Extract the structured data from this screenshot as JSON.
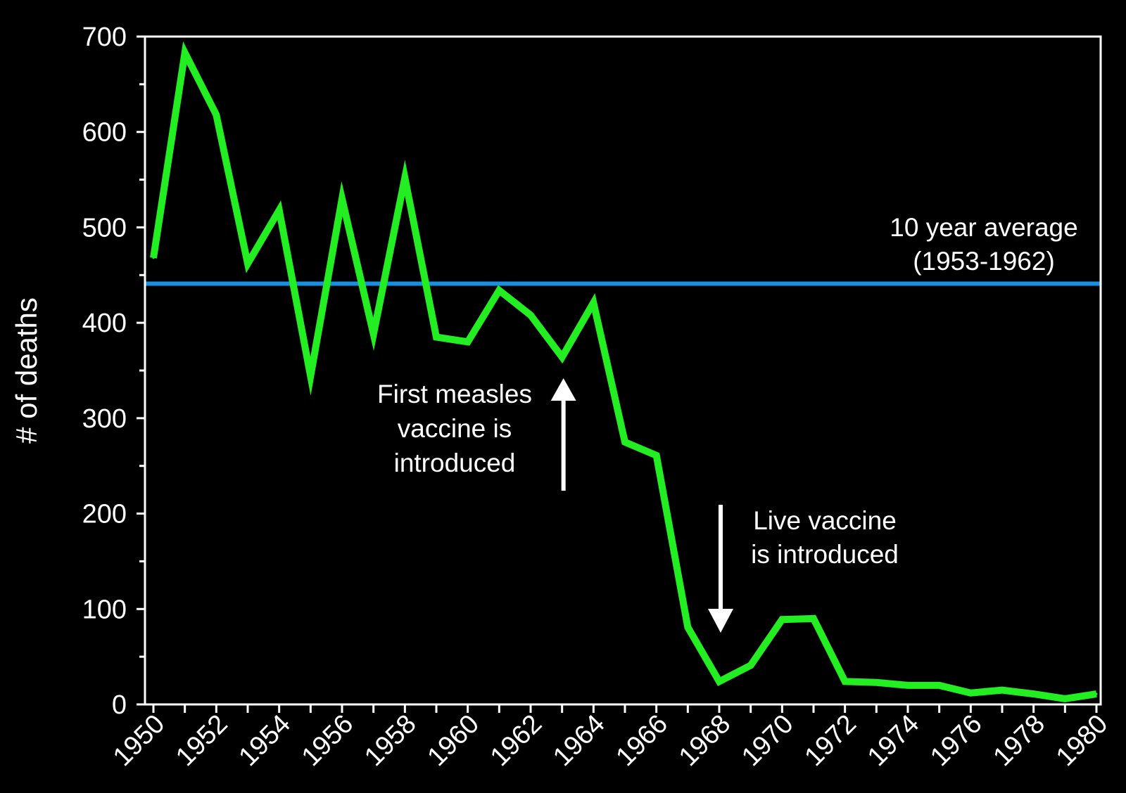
{
  "chart_data": {
    "type": "line",
    "title": "",
    "xlabel": "",
    "ylabel": "# of deaths",
    "xlim": [
      1950,
      1980
    ],
    "ylim": [
      0,
      700
    ],
    "y_ticks": [
      0,
      100,
      200,
      300,
      400,
      500,
      600,
      700
    ],
    "x_ticks": [
      1950,
      1952,
      1954,
      1956,
      1958,
      1960,
      1962,
      1964,
      1966,
      1968,
      1970,
      1972,
      1974,
      1976,
      1978,
      1980
    ],
    "grid": false,
    "legend": "none",
    "series": [
      {
        "color": "#22ee22",
        "x": [
          1950,
          1951,
          1952,
          1953,
          1954,
          1955,
          1956,
          1957,
          1958,
          1959,
          1960,
          1961,
          1962,
          1963,
          1964,
          1965,
          1966,
          1967,
          1968,
          1969,
          1970,
          1971,
          1972,
          1973,
          1974,
          1975,
          1976,
          1977,
          1978,
          1979,
          1980
        ],
        "y": [
          468,
          683,
          618,
          462,
          518,
          344,
          530,
          388,
          552,
          385,
          380,
          434,
          408,
          364,
          421,
          275,
          261,
          81,
          24,
          41,
          89,
          90,
          24,
          23,
          20,
          20,
          12,
          15,
          11,
          6,
          11
        ]
      }
    ],
    "reference_lines": [
      {
        "orientation": "horizontal",
        "value": 441,
        "color": "#1a8fe0",
        "label_lines": [
          "10 year average",
          "(1953-1962)"
        ]
      }
    ],
    "annotations": [
      {
        "label_lines": [
          "First measles",
          "vaccine is",
          "introduced"
        ],
        "x": 1963,
        "arrow": "up"
      },
      {
        "label_lines": [
          "Live vaccine",
          "is introduced"
        ],
        "x": 1968,
        "arrow": "down"
      }
    ]
  }
}
